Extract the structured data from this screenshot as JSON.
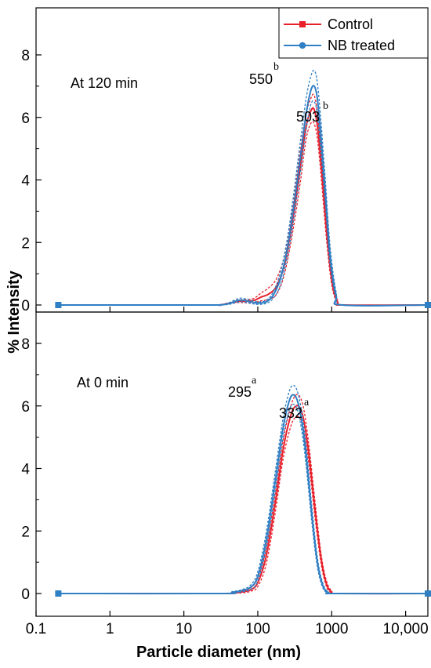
{
  "chart_data": {
    "type": "line",
    "x_scale": "log",
    "xlabel": "Particle diameter (nm)",
    "ylabel": "% Intensity",
    "x_ticks": [
      0.1,
      1,
      10,
      100,
      1000,
      10000
    ],
    "x_tick_labels": [
      "0.1",
      "1",
      "10",
      "100",
      "1000",
      "10,000"
    ],
    "xlim": [
      0.1,
      20000
    ],
    "legend": {
      "placement": "top-right",
      "entries": [
        {
          "name": "Control",
          "color": "#e8202a",
          "marker": "square"
        },
        {
          "name": "NB treated",
          "color": "#2f7fc4",
          "marker": "circle"
        }
      ]
    },
    "panels": [
      {
        "label": "At 120 min",
        "ylim": [
          0,
          8
        ],
        "y_ticks": [
          0,
          2,
          4,
          6,
          8
        ],
        "peak_labels": [
          {
            "value": "550",
            "superscript": "b",
            "x": 560,
            "y": 7.05
          },
          {
            "value": "503",
            "superscript": "b",
            "x": 503,
            "y": 6.3
          }
        ],
        "series": [
          {
            "name": "Control",
            "x": [
              0.2,
              20,
              30,
              40,
              55,
              70,
              90,
              110,
              140,
              180,
              230,
              300,
              380,
              450,
              520,
              580,
              650,
              750,
              850,
              1000,
              1200,
              1500,
              20000
            ],
            "y": [
              0,
              0,
              0,
              0.05,
              0.12,
              0.12,
              0.15,
              0.25,
              0.35,
              0.6,
              1.3,
              2.8,
              4.5,
              5.7,
              6.2,
              6.25,
              5.6,
              4.0,
              2.4,
              0.8,
              0.1,
              0,
              0
            ],
            "upper": [
              0,
              0,
              0,
              0.07,
              0.16,
              0.17,
              0.22,
              0.38,
              0.55,
              0.85,
              1.6,
              3.2,
              5.0,
              6.1,
              6.6,
              6.7,
              6.0,
              4.4,
              2.7,
              0.95,
              0.15,
              0,
              0
            ],
            "lower": [
              0,
              0,
              0,
              0.03,
              0.08,
              0.07,
              0.08,
              0.13,
              0.18,
              0.35,
              1.0,
              2.4,
              4.0,
              5.3,
              5.8,
              5.8,
              5.2,
              3.6,
              2.1,
              0.65,
              0.05,
              0,
              0
            ]
          },
          {
            "name": "NB treated",
            "x": [
              0.2,
              20,
              30,
              40,
              50,
              60,
              80,
              100,
              130,
              160,
              200,
              250,
              300,
              380,
              450,
              520,
              580,
              640,
              720,
              820,
              950,
              1150,
              1400,
              20000
            ],
            "y": [
              0,
              0,
              0,
              0.04,
              0.12,
              0.16,
              0.1,
              0.06,
              0.1,
              0.3,
              0.8,
              1.8,
              3.0,
              4.8,
              6.1,
              6.85,
              7.0,
              6.6,
              5.3,
              3.6,
              1.6,
              0.3,
              0,
              0
            ],
            "upper": [
              0,
              0,
              0,
              0.06,
              0.17,
              0.22,
              0.15,
              0.1,
              0.15,
              0.4,
              1.0,
              2.1,
              3.4,
              5.3,
              6.6,
              7.3,
              7.5,
              7.1,
              5.8,
              4.0,
              1.9,
              0.4,
              0,
              0
            ],
            "lower": [
              0,
              0,
              0,
              0.02,
              0.07,
              0.1,
              0.05,
              0.02,
              0.05,
              0.2,
              0.6,
              1.5,
              2.6,
              4.3,
              5.6,
              6.4,
              6.5,
              6.1,
              4.8,
              3.2,
              1.3,
              0.2,
              0,
              0
            ]
          }
        ]
      },
      {
        "label": "At 0 min",
        "ylim": [
          0,
          8
        ],
        "y_ticks": [
          0,
          2,
          4,
          6,
          8
        ],
        "peak_labels": [
          {
            "value": "295",
            "superscript": "a",
            "x": 300,
            "y": 6.3
          },
          {
            "value": "332",
            "superscript": "a",
            "x": 330,
            "y": 5.9
          }
        ],
        "series": [
          {
            "name": "Control",
            "x": [
              0.2,
              30,
              45,
              60,
              80,
              100,
              130,
              170,
              220,
              280,
              330,
              380,
              430,
              500,
              600,
              720,
              850,
              1000,
              1200,
              20000
            ],
            "y": [
              0,
              0,
              0.02,
              0.05,
              0.12,
              0.35,
              1.2,
              2.8,
              4.6,
              5.7,
              6.0,
              5.9,
              5.4,
              4.3,
              2.6,
              1.1,
              0.3,
              0.05,
              0,
              0
            ],
            "upper": [
              0,
              0,
              0.03,
              0.08,
              0.18,
              0.5,
              1.45,
              3.1,
              4.9,
              6.0,
              6.35,
              6.25,
              5.75,
              4.6,
              2.85,
              1.25,
              0.4,
              0.08,
              0,
              0
            ],
            "lower": [
              0,
              0,
              0.01,
              0.02,
              0.07,
              0.22,
              0.95,
              2.5,
              4.3,
              5.35,
              5.65,
              5.55,
              5.05,
              4.0,
              2.35,
              0.95,
              0.22,
              0.03,
              0,
              0
            ]
          },
          {
            "name": "NB treated",
            "x": [
              0.2,
              30,
              45,
              60,
              80,
              100,
              130,
              170,
              220,
              270,
              310,
              350,
              400,
              460,
              540,
              640,
              760,
              900,
              1100,
              20000
            ],
            "y": [
              0,
              0,
              0.04,
              0.09,
              0.2,
              0.55,
              1.7,
              3.5,
              5.3,
              6.2,
              6.35,
              6.1,
              5.4,
              4.2,
              2.5,
              1.0,
              0.25,
              0.03,
              0,
              0
            ],
            "upper": [
              0,
              0,
              0.06,
              0.12,
              0.27,
              0.7,
              1.95,
              3.8,
              5.6,
              6.5,
              6.65,
              6.4,
              5.7,
              4.5,
              2.75,
              1.15,
              0.32,
              0.05,
              0,
              0
            ],
            "lower": [
              0,
              0,
              0.02,
              0.05,
              0.13,
              0.4,
              1.45,
              3.2,
              5.0,
              5.9,
              6.05,
              5.8,
              5.1,
              3.9,
              2.25,
              0.85,
              0.18,
              0.01,
              0,
              0
            ]
          }
        ]
      }
    ]
  }
}
